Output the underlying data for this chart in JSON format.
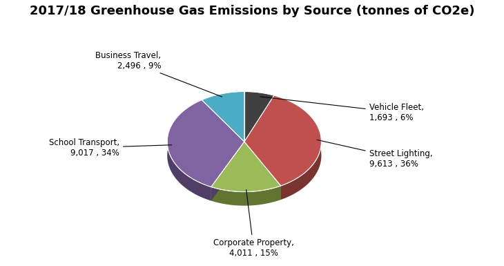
{
  "title": "2017/18 Greenhouse Gas Emissions by Source (tonnes of CO2e)",
  "title_fontsize": 13,
  "labels": [
    "Vehicle Fleet",
    "Street Lighting",
    "Corporate Property",
    "School Transport",
    "Business Travel"
  ],
  "values": [
    1693,
    9613,
    4011,
    9017,
    2496
  ],
  "percentages": [
    "6%",
    "36%",
    "15%",
    "34%",
    "9%"
  ],
  "display_values": [
    "1,693",
    "9,613",
    "4,011",
    "9,017",
    "2,496"
  ],
  "colors": [
    "#404040",
    "#C0504D",
    "#9BBB59",
    "#8064A2",
    "#4BACC6"
  ],
  "dark_colors": [
    "#282828",
    "#7B3330",
    "#607530",
    "#503E66",
    "#2E6E7A"
  ],
  "start_angle": 90,
  "figure_width": 7.3,
  "figure_height": 3.85,
  "dpi": 100,
  "background_color": "#FFFFFF",
  "custom_positions": [
    [
      1.62,
      0.38,
      "left"
    ],
    [
      1.62,
      -0.22,
      "left"
    ],
    [
      0.12,
      -1.38,
      "center"
    ],
    [
      -1.62,
      -0.08,
      "right"
    ],
    [
      -1.08,
      1.05,
      "right"
    ]
  ]
}
